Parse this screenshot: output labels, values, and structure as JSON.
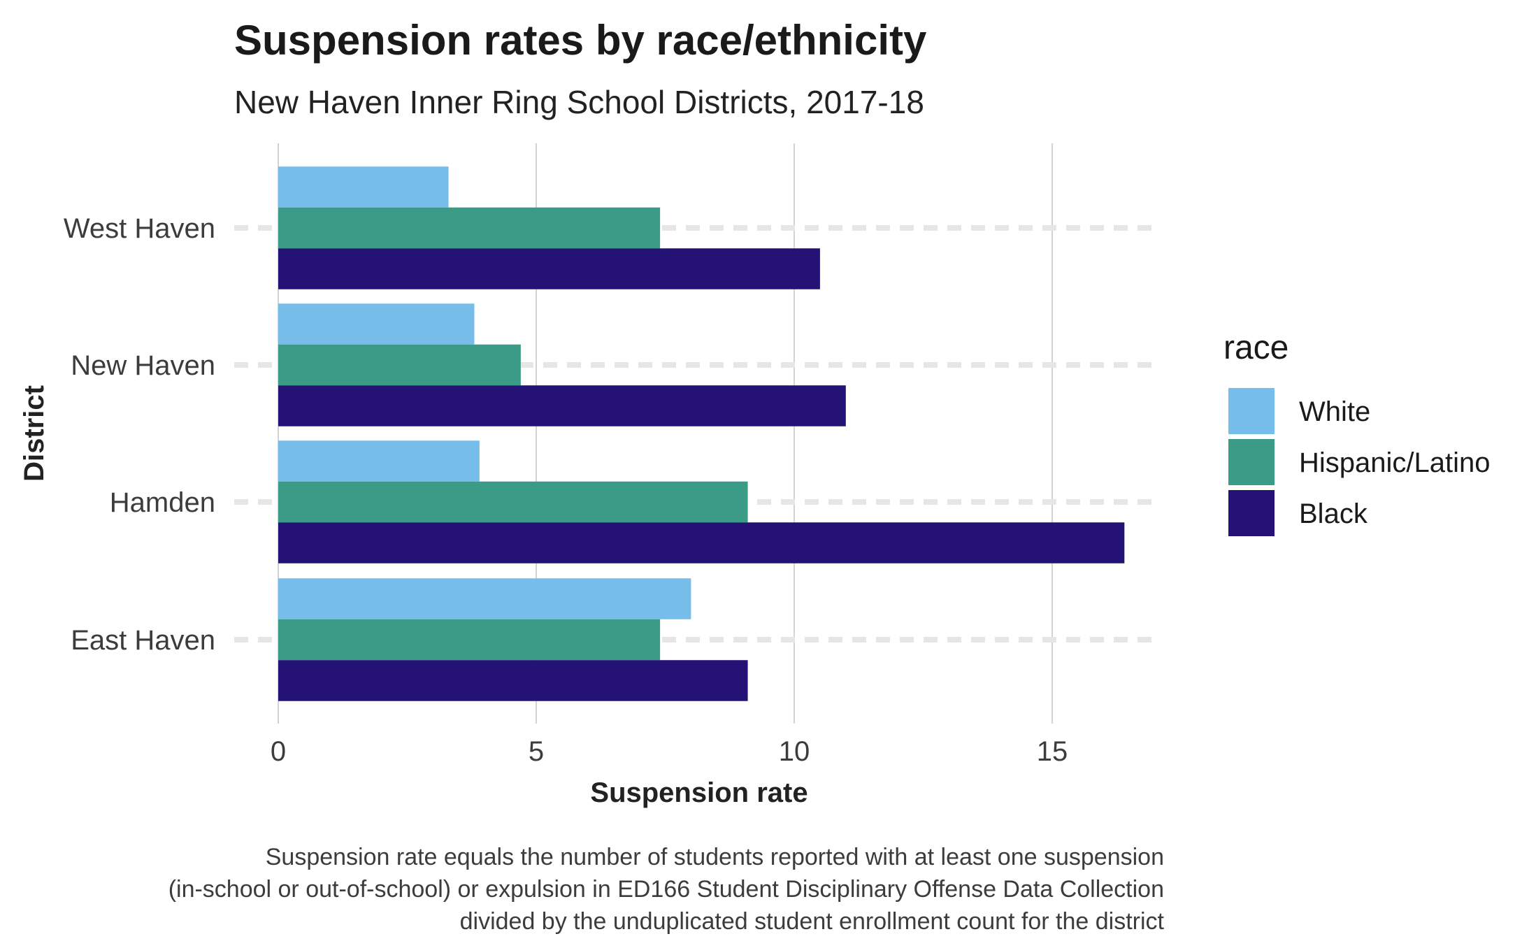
{
  "chart_data": {
    "type": "bar",
    "orientation": "horizontal",
    "title": "Suspension rates by race/ethnicity",
    "subtitle": "New Haven Inner Ring School Districts, 2017-18",
    "xlabel": "Suspension rate",
    "ylabel": "District",
    "categories": [
      "West Haven",
      "New Haven",
      "Hamden",
      "East Haven"
    ],
    "xlim": [
      0,
      17
    ],
    "x_ticks": [
      0,
      5,
      10,
      15
    ],
    "grid": true,
    "legend_title": "race",
    "legend_position": "right",
    "series": [
      {
        "name": "White",
        "color": "#76BEE9",
        "values": [
          3.3,
          3.8,
          3.9,
          8.0
        ]
      },
      {
        "name": "Hispanic/Latino",
        "color": "#3A9C87",
        "values": [
          7.4,
          4.7,
          9.1,
          7.4
        ]
      },
      {
        "name": "Black",
        "color": "#241275",
        "values": [
          10.5,
          11.0,
          16.4,
          9.1
        ]
      }
    ],
    "caption": [
      "Suspension rate equals the number of students reported with at least one suspension",
      "(in-school or out-of-school) or expulsion in ED166 Student Disciplinary Offense Data Collection",
      "divided by the unduplicated student enrollment count for the district"
    ]
  }
}
